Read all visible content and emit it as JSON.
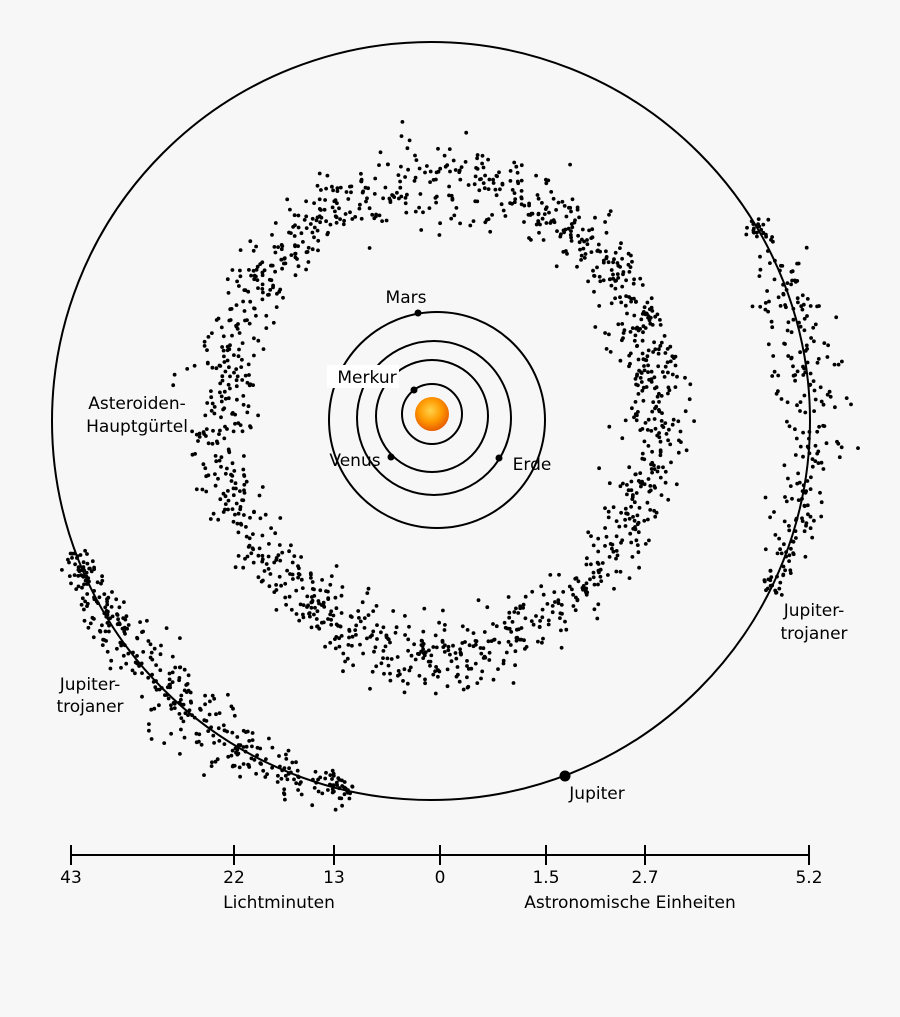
{
  "labels": {
    "mars": "Mars",
    "merkur": "Merkur",
    "venus": "Venus",
    "erde": "Erde",
    "jupiter": "Jupiter",
    "belt_line1": "Asteroiden-",
    "belt_line2": "Hauptgürtel",
    "trojans_left_line1": "Jupiter-",
    "trojans_left_line2": "trojaner",
    "trojans_right_line1": "Jupiter-",
    "trojans_right_line2": "trojaner"
  },
  "colors": {
    "sun_center": "#ffb000",
    "sun_edge": "#e85d00",
    "ink": "#000000",
    "background": "#f7f7f7"
  },
  "scale": {
    "left_title": "Lichtminuten",
    "right_title": "Astronomische Einheiten",
    "ticks": [
      "43",
      "22",
      "13",
      "0",
      "1.5",
      "2.7",
      "5.2"
    ]
  }
}
